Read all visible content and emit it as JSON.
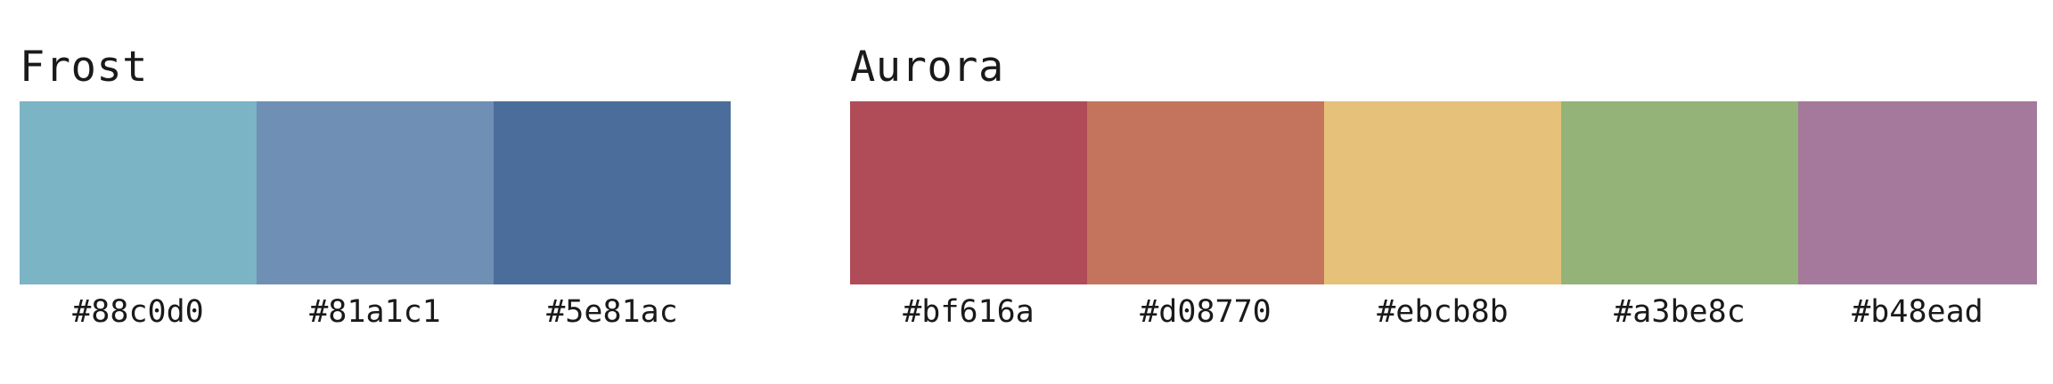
{
  "frost": {
    "title": "Frost",
    "swatches": [
      {
        "label": "#88c0d0",
        "color": "#7ab4c5"
      },
      {
        "label": "#81a1c1",
        "color": "#6f8fb4"
      },
      {
        "label": "#5e81ac",
        "color": "#4b6d9c"
      }
    ]
  },
  "aurora": {
    "title": "Aurora",
    "swatches": [
      {
        "label": "#bf616a",
        "color": "#b04b58"
      },
      {
        "label": "#d08770",
        "color": "#c4745d"
      },
      {
        "label": "#ebcb8b",
        "color": "#e6c17a"
      },
      {
        "label": "#a3be8c",
        "color": "#94b379"
      },
      {
        "label": "#b48ead",
        "color": "#a4799b"
      }
    ]
  }
}
